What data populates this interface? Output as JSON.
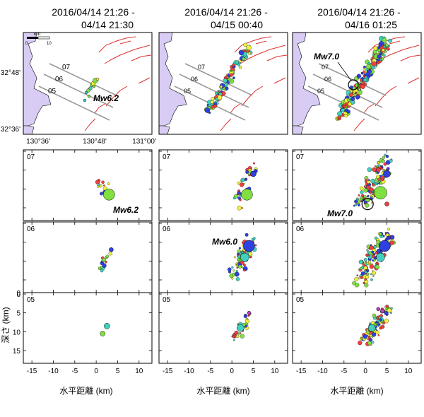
{
  "columns": [
    {
      "title_line1": "2016/04/14 21:26 -",
      "title_line2": "04/14 21:30"
    },
    {
      "title_line1": "2016/04/14 21:26 -",
      "title_line2": "04/15 00:40"
    },
    {
      "title_line1": "2016/04/14 21:26 -",
      "title_line2": "04/16 01:25"
    }
  ],
  "map": {
    "lat_labels": [
      "32°48'",
      "32°36'"
    ],
    "lon_labels": [
      "130°36'",
      "130°48'",
      "131°00'"
    ],
    "scale_unit": "km",
    "scale_ticks": [
      "0",
      "10"
    ],
    "profile_ids": [
      "07",
      "06",
      "05"
    ]
  },
  "annotations": {
    "map_col1": "Mw6.2",
    "map_col3": "Mw7.0",
    "sec07_col1": "Mw6.2",
    "sec07_col3": "Mw7.0",
    "sec06_col2": "Mw6.0"
  },
  "sections": {
    "ids": [
      "07",
      "06",
      "05"
    ],
    "x_ticks": [
      "-15",
      "-10",
      "-5",
      "0",
      "5",
      "10"
    ],
    "x_label": "水平距離 (km)",
    "y_ticks": [
      "0",
      "5",
      "10",
      "15"
    ],
    "y_label": "深さ (km)"
  },
  "colors": {
    "land": "#ffffff",
    "sea": "#d8ccf4",
    "fault": "#e03030",
    "profile_line": "#999999",
    "shallow": "#f04040",
    "mid_shallow": "#f0f040",
    "mid": "#80e040",
    "mid_deep": "#40d0c0",
    "deep": "#3040e0",
    "very_deep": "#c040c0"
  }
}
